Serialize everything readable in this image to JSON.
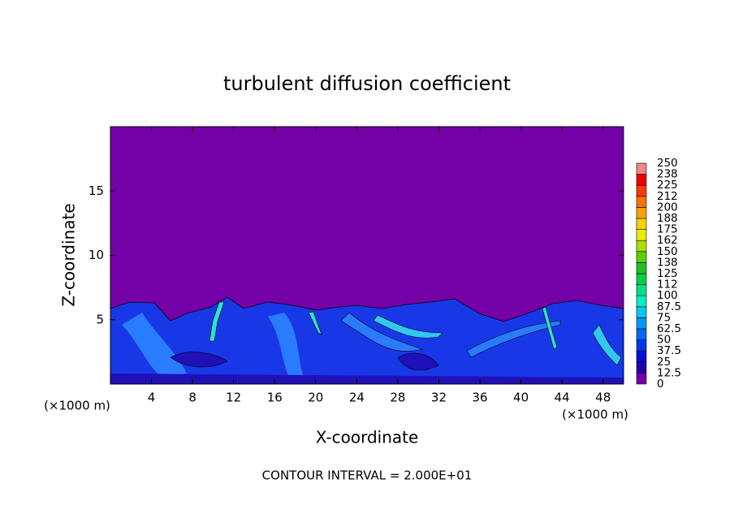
{
  "chart_data": {
    "type": "contour",
    "title": "turbulent diffusion coefficient",
    "xlabel": "X-coordinate",
    "ylabel": "Z-coordinate",
    "xunit_label": "(×1000 m)",
    "yunit_label": "(×1000 m)",
    "annotation": "CONTOUR INTERVAL = 2.000E+01",
    "xlim": [
      0,
      50
    ],
    "xticks": [
      4,
      8,
      12,
      16,
      20,
      24,
      28,
      32,
      36,
      40,
      44,
      48
    ],
    "ylim": [
      0,
      20
    ],
    "yticks": [
      5,
      10,
      15
    ],
    "colorbar": {
      "levels": [
        0,
        12.5,
        25,
        37.5,
        50,
        62.5,
        75,
        87.5,
        100,
        {
          "value": 112.5,
          "label": "112"
        },
        125,
        {
          "value": 137.5,
          "label": "138"
        },
        150,
        {
          "value": 162.5,
          "label": "162"
        },
        175,
        {
          "value": 187.5,
          "label": "188"
        },
        200,
        {
          "value": 212.5,
          "label": "212"
        },
        225,
        {
          "value": 237.5,
          "label": "238"
        },
        250
      ],
      "colors": [
        "#7400a8",
        "#2000b0",
        "#0010d8",
        "#0038f0",
        "#0068ff",
        "#0098ff",
        "#00c8f0",
        "#00f0c8",
        "#00e088",
        "#00d048",
        "#20c020",
        "#60d000",
        "#a8e000",
        "#e8f000",
        "#ffd000",
        "#ffa000",
        "#ff7000",
        "#ff3800",
        "#f00000",
        "#f08888"
      ]
    }
  }
}
